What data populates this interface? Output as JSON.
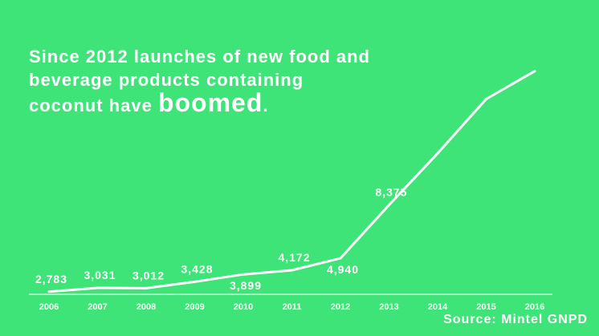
{
  "headline": {
    "line1": "Since 2012 launches of new food and",
    "line2": "beverage products containing",
    "line3_prefix": "coconut have ",
    "line3_emphasis": "boomed",
    "line3_suffix": "."
  },
  "source": "Source: Mintel GNPD",
  "colors": {
    "background": "#3ee477",
    "foreground": "#ffffff"
  },
  "chart_data": {
    "type": "line",
    "title": "",
    "xlabel": "",
    "ylabel": "",
    "grid": false,
    "legend": "none",
    "x": [
      "2006",
      "2007",
      "2008",
      "2009",
      "2010",
      "2011",
      "2012",
      "2013",
      "2014",
      "2015",
      "2016"
    ],
    "values": [
      2783,
      3031,
      3012,
      3428,
      3899,
      4172,
      4940,
      8375,
      11700,
      15200,
      17000
    ],
    "value_labels": [
      "2,783",
      "3,031",
      "3,012",
      "3,428",
      "3,899",
      "4,172",
      "4,940",
      "8,375",
      "",
      "",
      ""
    ],
    "ylim": [
      2000,
      19000
    ]
  }
}
